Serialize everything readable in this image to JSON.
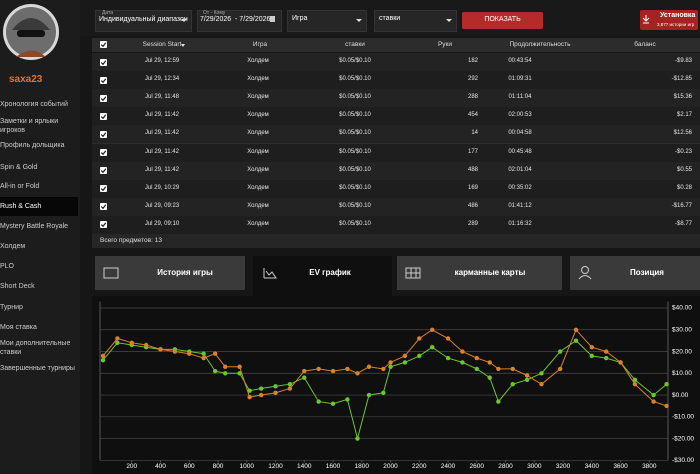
{
  "sidebar": {
    "username": "saxa23",
    "menu": [
      "Хронология событий",
      "Заметки и ярлыки игроков",
      "Профиль дольщика",
      "Spin & Gold",
      "All-in or Fold",
      "Rush & Cash",
      "Mystery Battle Royale",
      "Холдем",
      "PLO",
      "Short Deck",
      "Турнир",
      "Моя ставка",
      "Мои дополнительные ставки",
      "Завершенные турниры"
    ]
  },
  "filters": {
    "date_label": "Дата",
    "date_range": "Индивидуальный диапазон",
    "from_to_label": "От - Кому",
    "dates": "7/29/2026  - 7/29/2026",
    "game": "Игра",
    "stakes": "ставки",
    "show_button": "ПОКАЗАТЬ",
    "install_title": "Установка",
    "install_sub": "3,877 истории игр"
  },
  "table": {
    "headers": [
      "Session Start",
      "Игра",
      "ставки",
      "Руки",
      "Продолжительность",
      "баланс"
    ],
    "rows": [
      [
        "Jul 29, 12:59",
        "Холдем",
        "$0.05/$0.10",
        "182",
        "00:43:54",
        "-$9.83"
      ],
      [
        "Jul 29, 12:34",
        "Холдем",
        "$0.05/$0.10",
        "292",
        "01:09:31",
        "-$12.85"
      ],
      [
        "Jul 29, 11:48",
        "Холдем",
        "$0.05/$0.10",
        "288",
        "01:11:04",
        "$15.36"
      ],
      [
        "Jul 29, 11:42",
        "Холдем",
        "$0.05/$0.10",
        "454",
        "02:00:53",
        "$2.17"
      ],
      [
        "Jul 29, 11:42",
        "Холдем",
        "$0.05/$0.10",
        "14",
        "00:04:58",
        "$12.56"
      ],
      [
        "Jul 29, 11:42",
        "Холдем",
        "$0.05/$0.10",
        "177",
        "00:45:48",
        "-$0.23"
      ],
      [
        "Jul 29, 11:42",
        "Холдем",
        "$0.05/$0.10",
        "488",
        "02:01:04",
        "$0.55"
      ],
      [
        "Jul 29, 10:29",
        "Холдем",
        "$0.05/$0.10",
        "169",
        "00:35:02",
        "$0.28"
      ],
      [
        "Jul 29, 09:23",
        "Холдем",
        "$0.05/$0.10",
        "486",
        "01:41:12",
        "-$16.77"
      ],
      [
        "Jul 29, 09:10",
        "Холдем",
        "$0.05/$0.10",
        "289",
        "01:16:32",
        "-$8.77"
      ]
    ],
    "footer": "Всего предметов: 13"
  },
  "tabs": [
    "История игры",
    "EV график",
    "карманные карты",
    "Позиция"
  ],
  "chart_data": {
    "type": "line",
    "x": [
      0,
      100,
      200,
      300,
      400,
      500,
      600,
      700,
      780,
      850,
      950,
      1020,
      1100,
      1200,
      1300,
      1400,
      1500,
      1600,
      1700,
      1770,
      1850,
      1950,
      2000,
      2100,
      2200,
      2290,
      2400,
      2500,
      2600,
      2690,
      2750,
      2850,
      2950,
      3050,
      3180,
      3290,
      3400,
      3500,
      3600,
      3700,
      3830,
      3920
    ],
    "series": [
      {
        "color": "#6cc62f",
        "values": [
          16,
          24,
          23,
          22,
          21,
          21,
          20,
          19,
          11,
          10,
          10,
          2,
          3,
          4,
          5,
          8,
          -3,
          -4,
          -2,
          -20,
          0,
          1,
          13,
          15,
          18,
          22,
          17,
          15,
          12,
          8,
          -3,
          5,
          7,
          10,
          20,
          25,
          18,
          17,
          15,
          7,
          0,
          5
        ]
      },
      {
        "color": "#d9822b",
        "values": [
          18,
          26,
          24,
          23,
          21,
          20,
          19,
          17,
          19,
          13,
          13,
          -1,
          0,
          1,
          3,
          11,
          12,
          11,
          12,
          10,
          13,
          12,
          15,
          18,
          26,
          30,
          26,
          20,
          17,
          15,
          12,
          12,
          9,
          5,
          12,
          30,
          22,
          20,
          15,
          5,
          -3,
          -5
        ]
      }
    ],
    "xlim": [
      0,
      3930
    ],
    "ylim": [
      -30,
      43
    ],
    "xticks": [
      200,
      400,
      600,
      800,
      1000,
      1200,
      1400,
      1600,
      1800,
      2000,
      2200,
      2400,
      2600,
      2800,
      3000,
      3200,
      3400,
      3600,
      3800
    ],
    "yticks": [
      {
        "value": 40,
        "label": "$40.00"
      },
      {
        "value": 30,
        "label": "$30.00"
      },
      {
        "value": 20,
        "label": "$20.00"
      },
      {
        "value": 10,
        "label": "$10.00"
      },
      {
        "value": 0,
        "label": "$0.00"
      },
      {
        "value": -10,
        "label": "-$10.00"
      },
      {
        "value": -20,
        "label": "-$20.00"
      },
      {
        "value": -30,
        "label": "-$30.00"
      }
    ],
    "grid": true
  }
}
